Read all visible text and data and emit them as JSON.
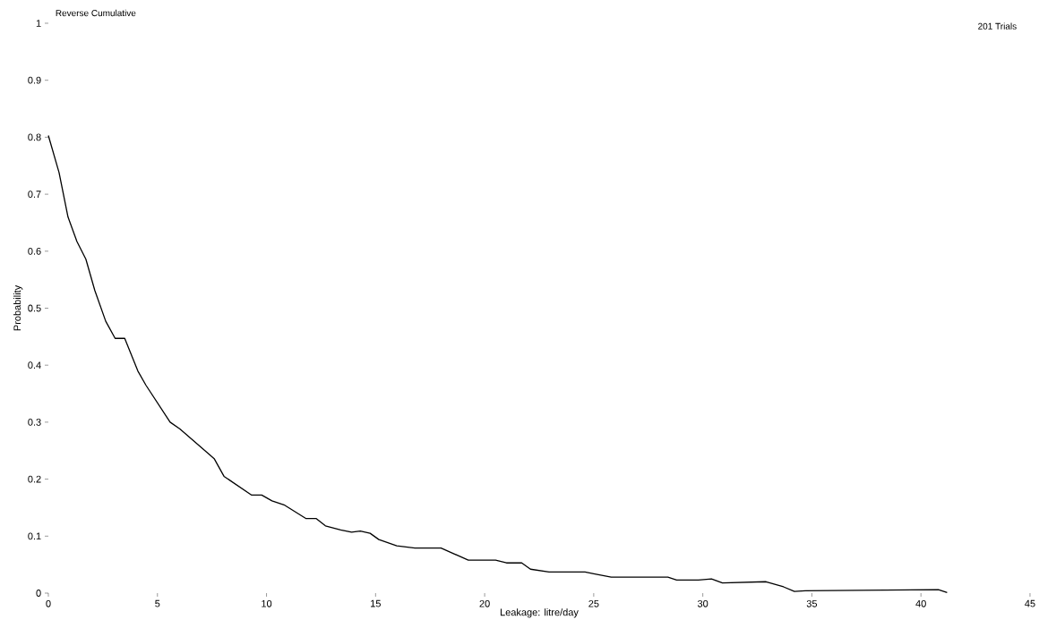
{
  "chart_data": {
    "type": "line",
    "title": "Reverse Cumulative",
    "subtitle": "201 Trials",
    "xlabel": "Leakage: litre/day",
    "ylabel": "Probability",
    "xlim": [
      0,
      45
    ],
    "ylim": [
      0,
      1
    ],
    "xticks": [
      0,
      5,
      10,
      15,
      20,
      25,
      30,
      35,
      40,
      45
    ],
    "yticks": [
      0,
      0.1,
      0.2,
      0.3,
      0.4,
      0.5,
      0.6,
      0.7,
      0.8,
      0.9,
      1
    ],
    "series": [
      {
        "color": "#000000",
        "x": [
          0,
          0.49,
          0.9,
          1.31,
          1.72,
          2.13,
          2.63,
          3.06,
          3.5,
          4.1,
          4.47,
          5.58,
          6.03,
          7.6,
          8.05,
          9.32,
          9.78,
          10.25,
          10.8,
          11.8,
          12.27,
          12.7,
          13.4,
          13.9,
          14.3,
          14.75,
          15.15,
          15.97,
          16.8,
          18.0,
          19.25,
          20.5,
          21.0,
          21.7,
          22.1,
          22.95,
          24.6,
          25.0,
          25.8,
          28.4,
          28.8,
          29.8,
          30.4,
          30.9,
          32.9,
          33.7,
          34.2,
          34.7,
          40.8,
          41.2
        ],
        "values": [
          0.803,
          0.738,
          0.66,
          0.617,
          0.586,
          0.531,
          0.477,
          0.447,
          0.447,
          0.39,
          0.365,
          0.3,
          0.288,
          0.236,
          0.205,
          0.172,
          0.172,
          0.162,
          0.155,
          0.131,
          0.131,
          0.118,
          0.111,
          0.107,
          0.109,
          0.105,
          0.094,
          0.083,
          0.079,
          0.079,
          0.058,
          0.058,
          0.053,
          0.053,
          0.042,
          0.037,
          0.037,
          0.034,
          0.028,
          0.028,
          0.023,
          0.023,
          0.025,
          0.018,
          0.02,
          0.011,
          0.003,
          0.004,
          0.006,
          0.001
        ]
      }
    ]
  }
}
